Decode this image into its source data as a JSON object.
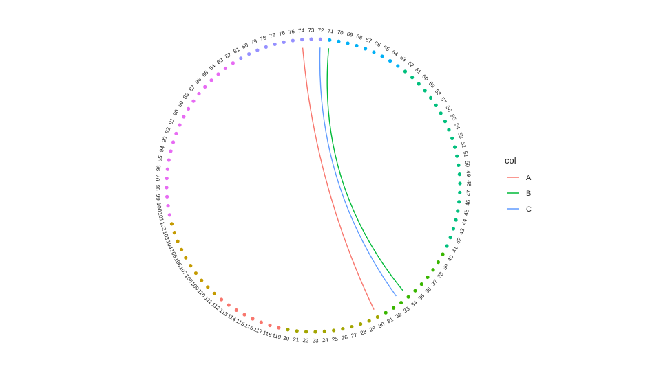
{
  "chart_data": {
    "type": "network-circle",
    "node_ids": [
      "20",
      "21",
      "22",
      "23",
      "24",
      "25",
      "26",
      "27",
      "28",
      "29",
      "30",
      "31",
      "32",
      "33",
      "34",
      "35",
      "36",
      "37",
      "38",
      "39",
      "40",
      "41",
      "42",
      "43",
      "44",
      "45",
      "46",
      "47",
      "48",
      "49",
      "50",
      "51",
      "52",
      "53",
      "54",
      "55",
      "56",
      "57",
      "58",
      "59",
      "60",
      "61",
      "62",
      "63",
      "64",
      "65",
      "66",
      "67",
      "68",
      "69",
      "70",
      "71",
      "72",
      "73",
      "74",
      "75",
      "76",
      "77",
      "78",
      "79",
      "80",
      "81",
      "82",
      "83",
      "84",
      "85",
      "86",
      "87",
      "88",
      "89",
      "90",
      "91",
      "92",
      "93",
      "94",
      "95",
      "96",
      "97",
      "98",
      "99",
      "100",
      "101",
      "102",
      "103",
      "104",
      "105",
      "106",
      "107",
      "108",
      "109",
      "110",
      "111",
      "112",
      "113",
      "114",
      "115",
      "116",
      "117",
      "118",
      "119"
    ],
    "node_groups": [
      {
        "first": "112",
        "last": "119",
        "color": "#F8766D"
      },
      {
        "first": "20",
        "last": "30",
        "color": "#A3A500"
      },
      {
        "first": "31",
        "last": "40",
        "color": "#39B600"
      },
      {
        "first": "41",
        "last": "62",
        "color": "#00BF7D"
      },
      {
        "first": "63",
        "last": "71",
        "color": "#00B0F6"
      },
      {
        "first": "72",
        "last": "81",
        "color": "#9590FF"
      },
      {
        "first": "82",
        "last": "101",
        "color": "#E76BF3"
      },
      {
        "first": "102",
        "last": "111",
        "color": "#C49A00"
      }
    ],
    "edges": [
      {
        "from": "30",
        "to": "74",
        "series": "A"
      },
      {
        "from": "34",
        "to": "71",
        "series": "B"
      },
      {
        "from": "33",
        "to": "72",
        "series": "C"
      }
    ],
    "legend": {
      "title": "col",
      "position": "right",
      "items": [
        {
          "label": "A",
          "color": "#F8766D"
        },
        {
          "label": "B",
          "color": "#00BA38"
        },
        {
          "label": "C",
          "color": "#619CFF"
        }
      ]
    }
  }
}
